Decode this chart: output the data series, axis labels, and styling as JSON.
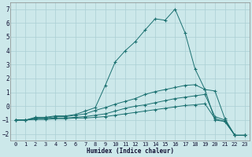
{
  "title": "",
  "xlabel": "Humidex (Indice chaleur)",
  "ylabel": "",
  "background_color": "#cce8ea",
  "grid_color": "#aacfd4",
  "line_color": "#1a7070",
  "xlim": [
    -0.5,
    23.5
  ],
  "ylim": [
    -2.5,
    7.5
  ],
  "xticks": [
    0,
    1,
    2,
    3,
    4,
    5,
    6,
    7,
    8,
    9,
    10,
    11,
    12,
    13,
    14,
    15,
    16,
    17,
    18,
    19,
    20,
    21,
    22,
    23
  ],
  "yticks": [
    -2,
    -1,
    0,
    1,
    2,
    3,
    4,
    5,
    6,
    7
  ],
  "series": [
    {
      "x": [
        0,
        1,
        2,
        3,
        4,
        5,
        6,
        7,
        8,
        9,
        10,
        11,
        12,
        13,
        14,
        15,
        16,
        17,
        18,
        19,
        20,
        21,
        22,
        23
      ],
      "y": [
        -1.0,
        -1.0,
        -0.8,
        -0.8,
        -0.7,
        -0.7,
        -0.6,
        -0.35,
        -0.1,
        1.5,
        3.2,
        4.0,
        4.65,
        5.5,
        6.3,
        6.2,
        7.0,
        5.3,
        2.7,
        1.2,
        1.1,
        -0.9,
        -2.1,
        -2.1
      ]
    },
    {
      "x": [
        0,
        1,
        2,
        3,
        4,
        5,
        6,
        7,
        8,
        9,
        10,
        11,
        12,
        13,
        14,
        15,
        16,
        17,
        18,
        19,
        20,
        21,
        22,
        23
      ],
      "y": [
        -1.0,
        -1.0,
        -0.85,
        -0.85,
        -0.75,
        -0.75,
        -0.65,
        -0.55,
        -0.3,
        -0.1,
        0.15,
        0.35,
        0.55,
        0.85,
        1.05,
        1.2,
        1.35,
        1.5,
        1.55,
        1.2,
        -1.0,
        -1.1,
        -2.1,
        -2.1
      ]
    },
    {
      "x": [
        0,
        1,
        2,
        3,
        4,
        5,
        6,
        7,
        8,
        9,
        10,
        11,
        12,
        13,
        14,
        15,
        16,
        17,
        18,
        19,
        20,
        21,
        22,
        23
      ],
      "y": [
        -1.0,
        -1.0,
        -0.9,
        -0.9,
        -0.85,
        -0.85,
        -0.8,
        -0.75,
        -0.65,
        -0.55,
        -0.35,
        -0.15,
        0.0,
        0.1,
        0.25,
        0.4,
        0.55,
        0.65,
        0.75,
        0.85,
        -0.75,
        -1.0,
        -2.1,
        -2.1
      ]
    },
    {
      "x": [
        0,
        1,
        2,
        3,
        4,
        5,
        6,
        7,
        8,
        9,
        10,
        11,
        12,
        13,
        14,
        15,
        16,
        17,
        18,
        19,
        20,
        21,
        22,
        23
      ],
      "y": [
        -1.0,
        -1.0,
        -0.95,
        -0.95,
        -0.9,
        -0.9,
        -0.85,
        -0.85,
        -0.8,
        -0.75,
        -0.65,
        -0.55,
        -0.45,
        -0.35,
        -0.25,
        -0.15,
        -0.05,
        0.05,
        0.1,
        0.18,
        -0.9,
        -1.1,
        -2.1,
        -2.1
      ]
    }
  ]
}
